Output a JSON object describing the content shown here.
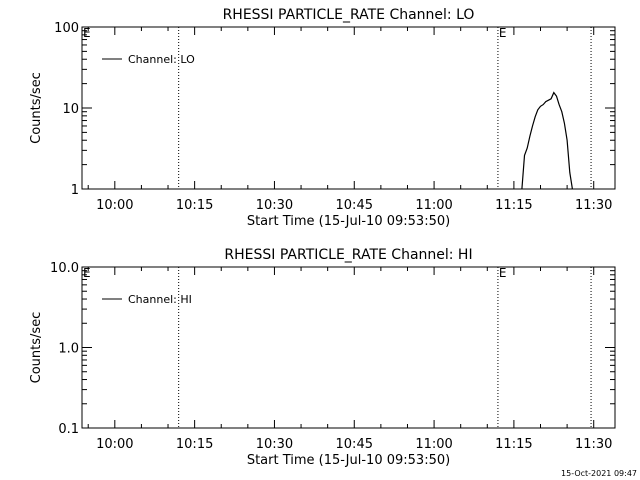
{
  "footer": {
    "timestamp": "15-Oct-2021 09:47"
  },
  "chart_data": [
    {
      "type": "line",
      "title": "RHESSI PARTICLE_RATE Channel: LO",
      "xlabel": "Start Time (15-Jul-10 09:53:50)",
      "ylabel": "Counts/sec",
      "yscale": "log",
      "ylim": [
        1,
        100
      ],
      "yticks": [
        1,
        10,
        100
      ],
      "ytick_labels": [
        "1",
        "10",
        "100"
      ],
      "xlim": [
        "09:53:50",
        "11:34:00"
      ],
      "xticks": [
        "10:00",
        "10:15",
        "10:30",
        "10:45",
        "11:00",
        "11:15",
        "11:30"
      ],
      "legend": {
        "position": "top-left",
        "entries": [
          "Channel: LO"
        ]
      },
      "vlines": [
        "10:12:00",
        "11:12:00",
        "11:29:30"
      ],
      "markers": [
        {
          "label": "E",
          "at": "09:53:50"
        },
        {
          "label": "E",
          "at": "11:12:00"
        }
      ],
      "series": [
        {
          "name": "Channel: LO",
          "points": [
            [
              "11:16:30",
              1.0
            ],
            [
              "11:17:00",
              2.6
            ],
            [
              "11:17:30",
              3.2
            ],
            [
              "11:18:00",
              4.5
            ],
            [
              "11:18:30",
              6.0
            ],
            [
              "11:19:00",
              7.8
            ],
            [
              "11:19:30",
              9.5
            ],
            [
              "11:20:00",
              10.5
            ],
            [
              "11:20:30",
              11.0
            ],
            [
              "11:21:00",
              12.0
            ],
            [
              "11:21:30",
              12.5
            ],
            [
              "11:22:00",
              13.0
            ],
            [
              "11:22:30",
              15.5
            ],
            [
              "11:23:00",
              14.0
            ],
            [
              "11:23:30",
              11.0
            ],
            [
              "11:24:00",
              9.0
            ],
            [
              "11:24:30",
              6.5
            ],
            [
              "11:25:00",
              4.0
            ],
            [
              "11:25:30",
              1.6
            ],
            [
              "11:26:00",
              1.0
            ]
          ]
        }
      ]
    },
    {
      "type": "line",
      "title": "RHESSI PARTICLE_RATE Channel: HI",
      "xlabel": "Start Time (15-Jul-10 09:53:50)",
      "ylabel": "Counts/sec",
      "yscale": "log",
      "ylim": [
        0.1,
        10
      ],
      "yticks": [
        0.1,
        1,
        10
      ],
      "ytick_labels": [
        "0.1",
        "1.0",
        "10.0"
      ],
      "xlim": [
        "09:53:50",
        "11:34:00"
      ],
      "xticks": [
        "10:00",
        "10:15",
        "10:30",
        "10:45",
        "11:00",
        "11:15",
        "11:30"
      ],
      "legend": {
        "position": "top-left",
        "entries": [
          "Channel: HI"
        ]
      },
      "vlines": [
        "10:12:00",
        "11:12:00",
        "11:29:30"
      ],
      "markers": [
        {
          "label": "E",
          "at": "09:53:50"
        },
        {
          "label": "E",
          "at": "11:12:00"
        }
      ],
      "series": [
        {
          "name": "Channel: HI",
          "points": []
        }
      ]
    }
  ]
}
